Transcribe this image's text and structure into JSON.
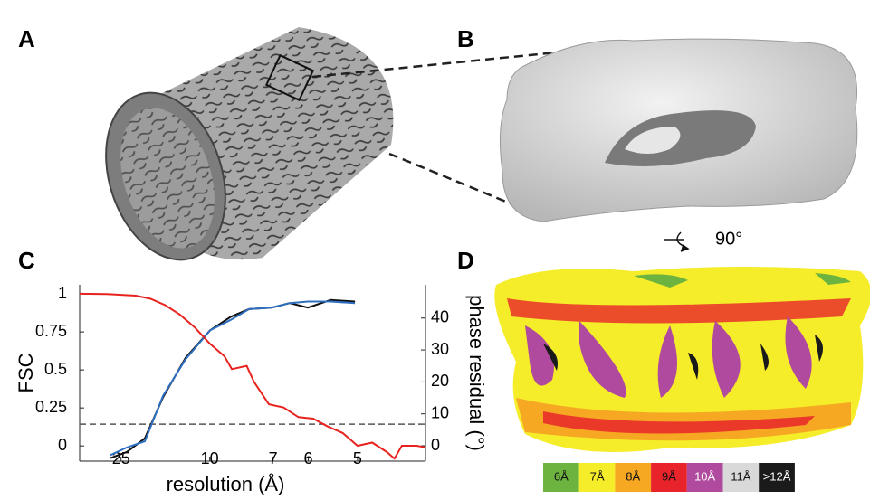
{
  "panel_labels": [
    "A",
    "B",
    "C",
    "D"
  ],
  "rotation_label": "90°",
  "resolution_legend": [
    {
      "label": "6Å",
      "color": "#6cb33f"
    },
    {
      "label": "7Å",
      "color": "#f5ec2a"
    },
    {
      "label": "8Å",
      "color": "#f7a823"
    },
    {
      "label": "9Å",
      "color": "#e8242a"
    },
    {
      "label": "10Å",
      "color": "#b04a9e"
    },
    {
      "label": "11Å",
      "color": "#d9d9d9"
    },
    {
      "label": ">12Å",
      "color": "#1a1a1a"
    }
  ],
  "chart_data": {
    "type": "line",
    "xlabel": "resolution (Å)",
    "ylabel": "FSC",
    "y2label": "phase residual (°)",
    "xlim": [
      0.012,
      0.246
    ],
    "xticks": [
      {
        "value": 0.04,
        "label": "25"
      },
      {
        "value": 0.1,
        "label": "10"
      },
      {
        "value": 0.1429,
        "label": "7"
      },
      {
        "value": 0.1667,
        "label": "6"
      },
      {
        "value": 0.2,
        "label": "5"
      }
    ],
    "ylim": [
      -0.1,
      1.06
    ],
    "yticks": [
      0,
      0.25,
      0.5,
      0.75,
      1
    ],
    "y2lim": [
      -4.8,
      50.4
    ],
    "y2ticks": [
      0,
      10,
      20,
      30,
      40
    ],
    "threshold": 0.143,
    "threshold_color": "#555555",
    "series": [
      {
        "color": "#111111",
        "axis": "y",
        "x": [
          0.0328,
          0.0439,
          0.0561,
          0.0684,
          0.0837,
          0.1002,
          0.1143,
          0.1266,
          0.1419,
          0.1542,
          0.1664,
          0.1818,
          0.1983
        ],
        "values": [
          -0.08,
          -0.04,
          0.05,
          0.32,
          0.58,
          0.76,
          0.85,
          0.9,
          0.91,
          0.94,
          0.91,
          0.96,
          0.95
        ]
      },
      {
        "color": "#2f6fc0",
        "axis": "y",
        "x": [
          0.0328,
          0.0439,
          0.0561,
          0.0684,
          0.0837,
          0.1002,
          0.1143,
          0.1266,
          0.1419,
          0.1542,
          0.1664,
          0.1818,
          0.1983
        ],
        "values": [
          -0.06,
          -0.01,
          0.03,
          0.33,
          0.57,
          0.76,
          0.83,
          0.9,
          0.91,
          0.94,
          0.95,
          0.95,
          0.94
        ]
      },
      {
        "color": "#e8231f",
        "axis": "y2",
        "x": [
          0.012,
          0.03,
          0.05,
          0.06,
          0.07,
          0.08,
          0.09,
          0.1,
          0.11,
          0.115,
          0.125,
          0.13,
          0.14,
          0.15,
          0.16,
          0.17,
          0.18,
          0.19,
          0.2,
          0.21,
          0.22,
          0.225,
          0.23,
          0.24,
          0.246
        ],
        "values": [
          47.6,
          47.5,
          47,
          46,
          44,
          41,
          37,
          32,
          28,
          24,
          25,
          20,
          13,
          12,
          9,
          8.5,
          6,
          4,
          0,
          1,
          -2,
          -4,
          0,
          0,
          -0.5
        ]
      }
    ]
  }
}
